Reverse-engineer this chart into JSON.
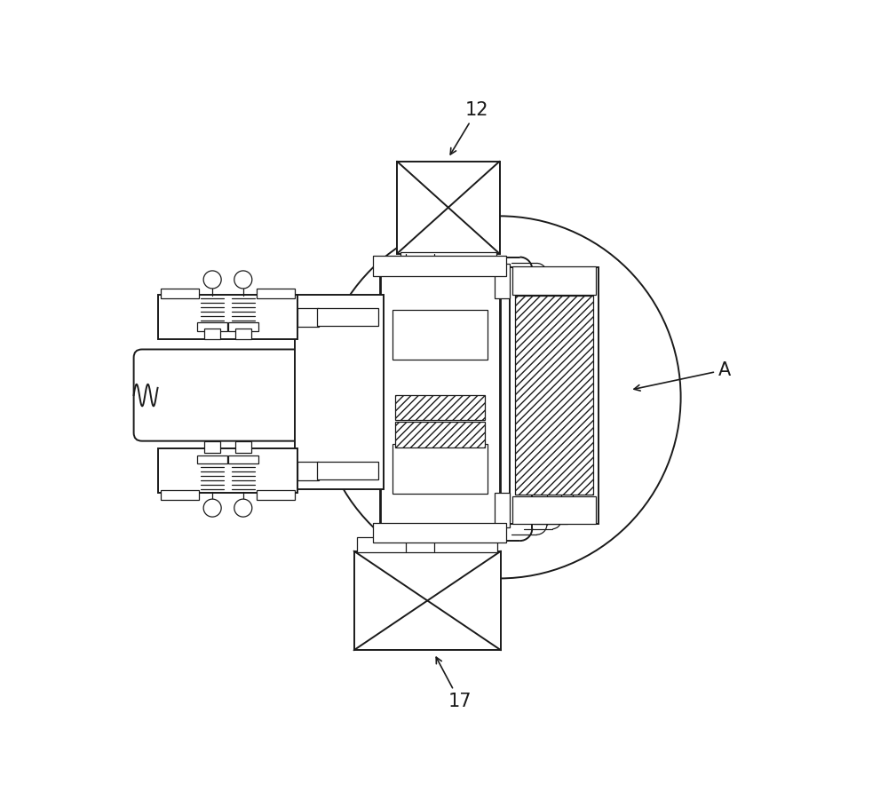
{
  "bg_color": "#ffffff",
  "line_color": "#1a1a1a",
  "lw": 1.4,
  "lw_thin": 0.9,
  "lw_thick": 2.0,
  "fig_width": 10.0,
  "fig_height": 8.92,
  "dpi": 100,
  "label_12": "12",
  "label_17": "17",
  "label_A": "A"
}
